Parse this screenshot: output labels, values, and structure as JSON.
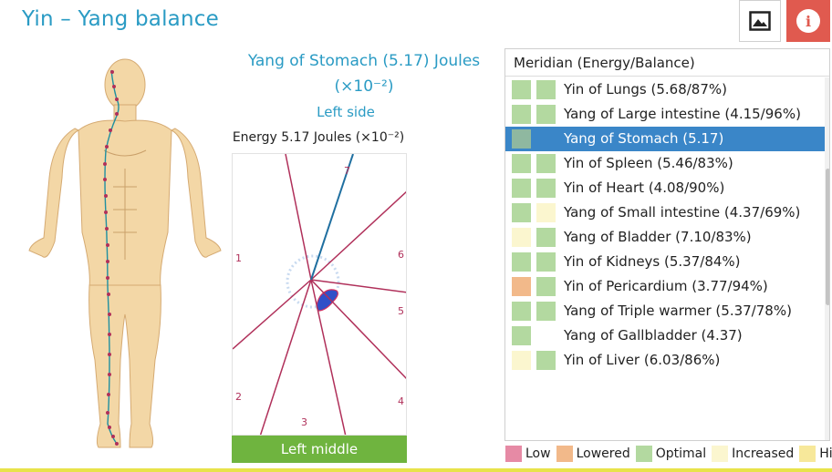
{
  "header": {
    "title": "Yin – Yang balance",
    "image_button_icon": "image-icon",
    "info_button_icon": "info-icon",
    "info_glyph": "i"
  },
  "detail": {
    "title_line1": "Yang of Stomach (5.17) Joules",
    "title_line2": "(×10⁻²)",
    "side": "Left side",
    "energy": "Energy 5.17 Joules (×10⁻²)",
    "sector_numbers": [
      "1",
      "2",
      "3",
      "4",
      "5",
      "6",
      "7"
    ],
    "position": "Left middle",
    "position_color": "#6fb43f"
  },
  "meridian_panel": {
    "header": "Meridian (Energy/Balance)",
    "items": [
      {
        "label": "Yin of Lungs (5.68/87%)",
        "c1": "#b3d9a0",
        "c2": "#b3d9a0",
        "selected": false
      },
      {
        "label": "Yang of Large intestine (4.15/96%)",
        "c1": "#b3d9a0",
        "c2": "#b3d9a0",
        "selected": false
      },
      {
        "label": "Yang of Stomach (5.17)",
        "c1": "#8fb8a0",
        "c2": "",
        "selected": true
      },
      {
        "label": "Yin of Spleen (5.46/83%)",
        "c1": "#b3d9a0",
        "c2": "#b3d9a0",
        "selected": false
      },
      {
        "label": "Yin of Heart (4.08/90%)",
        "c1": "#b3d9a0",
        "c2": "#b3d9a0",
        "selected": false
      },
      {
        "label": "Yang of Small intestine (4.37/69%)",
        "c1": "#b3d9a0",
        "c2": "#fbf6cf",
        "selected": false
      },
      {
        "label": "Yang of Bladder (7.10/83%)",
        "c1": "#fbf6cf",
        "c2": "#b3d9a0",
        "selected": false
      },
      {
        "label": "Yin of Kidneys (5.37/84%)",
        "c1": "#b3d9a0",
        "c2": "#b3d9a0",
        "selected": false
      },
      {
        "label": "Yin of Pericardium (3.77/94%)",
        "c1": "#f2b98a",
        "c2": "#b3d9a0",
        "selected": false
      },
      {
        "label": "Yang of Triple warmer (5.37/78%)",
        "c1": "#b3d9a0",
        "c2": "#b3d9a0",
        "selected": false
      },
      {
        "label": "Yang of Gallbladder (4.37)",
        "c1": "#b3d9a0",
        "c2": "",
        "selected": false
      },
      {
        "label": "Yin of Liver (6.03/86%)",
        "c1": "#fbf6cf",
        "c2": "#b3d9a0",
        "selected": false
      }
    ]
  },
  "legend": [
    {
      "label": "Low",
      "color": "#e68aa5"
    },
    {
      "label": "Lowered",
      "color": "#f2b98a"
    },
    {
      "label": "Optimal",
      "color": "#b3d9a0"
    },
    {
      "label": "Increased",
      "color": "#fbf6cf"
    },
    {
      "label": "High",
      "color": "#f7e89a"
    }
  ],
  "colors": {
    "accent": "#2a9bc4",
    "selected_row": "#3a86c8",
    "info_button": "#e05a4f",
    "sector_line": "#b0305a",
    "meridian_line": "#1f8fa0"
  }
}
